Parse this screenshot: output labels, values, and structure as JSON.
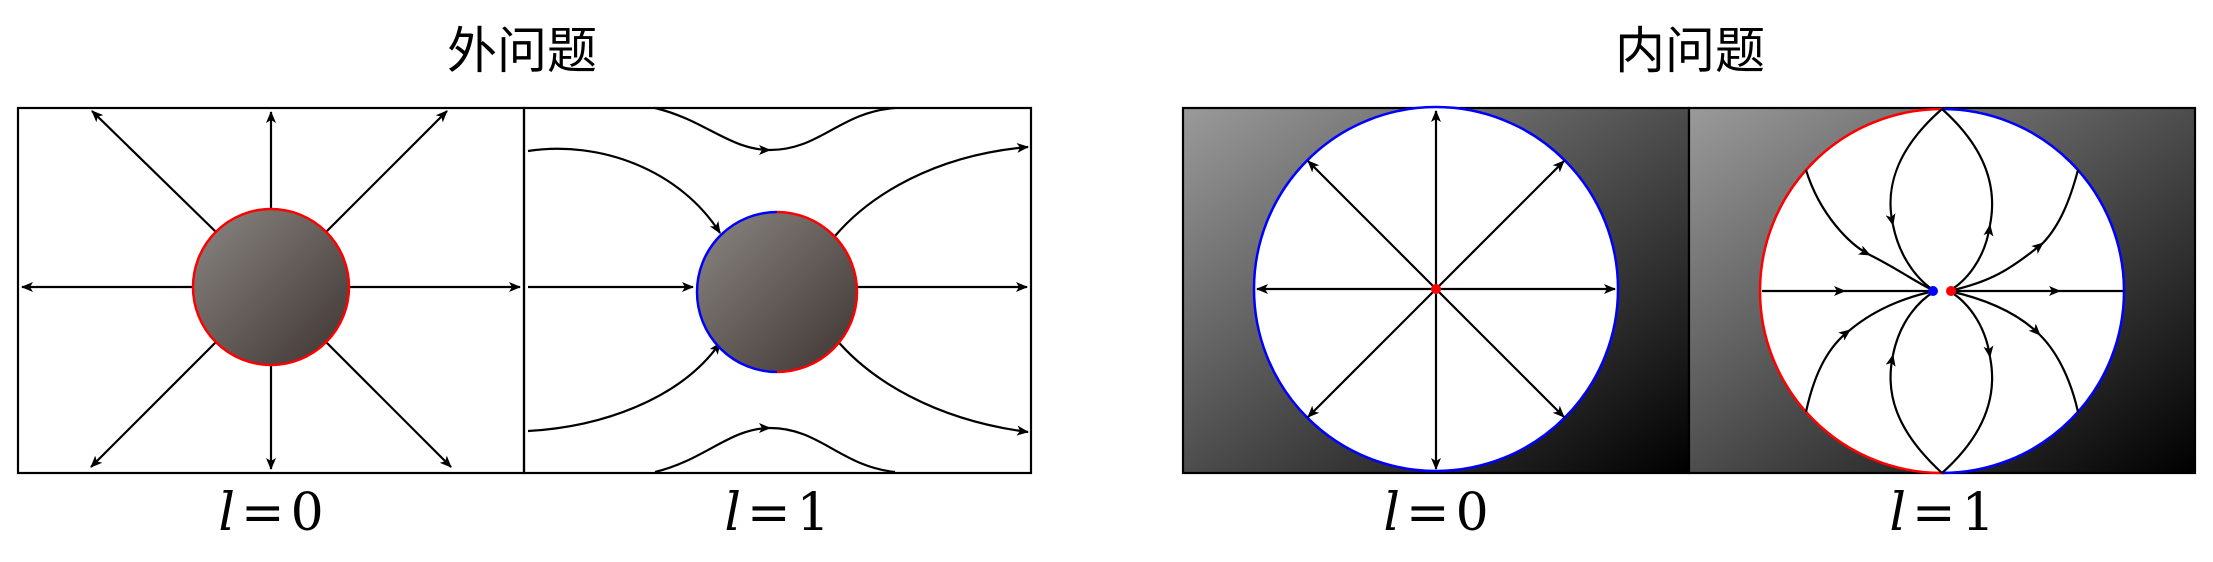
{
  "groups": [
    {
      "title": "外问题",
      "panels": [
        {
          "caption_var": "l",
          "caption_eq": "=",
          "caption_value": "0"
        },
        {
          "caption_var": "l",
          "caption_eq": "=",
          "caption_value": "1"
        }
      ]
    },
    {
      "title": "内问题",
      "panels": [
        {
          "caption_var": "l",
          "caption_eq": "=",
          "caption_value": "0"
        },
        {
          "caption_var": "l",
          "caption_eq": "=",
          "caption_value": "1"
        }
      ]
    }
  ],
  "colors": {
    "positive": "#ff0000",
    "negative": "#0000ff",
    "line": "#000000",
    "sphere_light": "#8c8784",
    "sphere_dark": "#3d3430",
    "background_light": "#9a9a9a",
    "background_dark": "#000000"
  }
}
